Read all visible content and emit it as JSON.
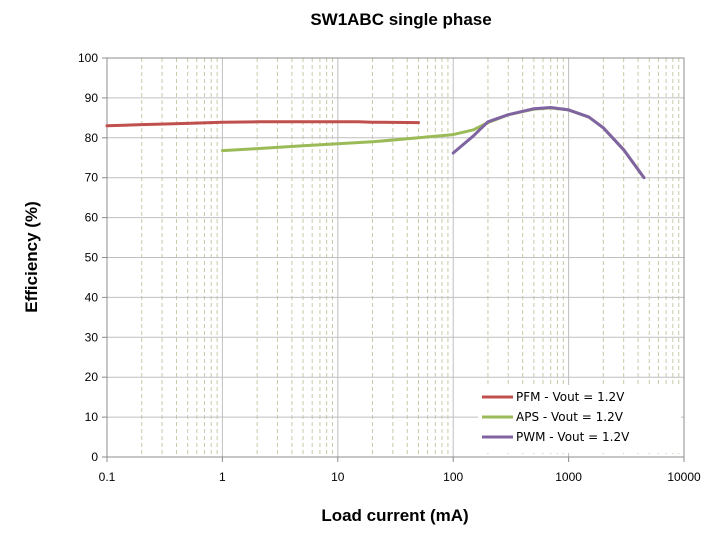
{
  "chart_data": {
    "type": "line",
    "title": "SW1ABC single phase",
    "xlabel": "Load current (mA)",
    "ylabel": "Efficiency (%)",
    "xscale": "log",
    "xlim": [
      0.1,
      10000
    ],
    "ylim": [
      0,
      100
    ],
    "x_ticks": [
      "0.1",
      "1",
      "10",
      "100",
      "1000",
      "10000"
    ],
    "y_ticks": [
      "0",
      "10",
      "20",
      "30",
      "40",
      "50",
      "60",
      "70",
      "80",
      "90",
      "100"
    ],
    "grid": "on",
    "legend_position": "bottom-right",
    "colors": {
      "plot_border": "#8c8c8c",
      "grid_minor": "#c9c9a6",
      "grid_major": "#bfbfbf"
    },
    "series": [
      {
        "name": "PFM - Vout = 1.2V",
        "color": "#c0504d",
        "x": [
          0.1,
          0.2,
          0.5,
          1,
          2,
          5,
          10,
          15,
          20,
          50
        ],
        "y": [
          83.0,
          83.3,
          83.6,
          83.9,
          84.0,
          84.0,
          84.0,
          84.0,
          83.9,
          83.8
        ]
      },
      {
        "name": "APS - Vout = 1.2V",
        "color": "#9bbb59",
        "x": [
          1,
          2,
          5,
          10,
          20,
          50,
          100,
          150,
          200,
          300,
          500,
          700,
          1000,
          1500,
          2000,
          3000,
          4500
        ],
        "y": [
          76.8,
          77.3,
          78.0,
          78.5,
          79.0,
          80.0,
          80.8,
          82.0,
          83.8,
          85.8,
          87.2,
          87.5,
          87.0,
          85.2,
          82.5,
          77.0,
          70.0
        ]
      },
      {
        "name": "PWM - Vout = 1.2V",
        "color": "#8064a2",
        "x": [
          100,
          150,
          200,
          300,
          500,
          700,
          1000,
          1500,
          2000,
          3000,
          4500
        ],
        "y": [
          76.2,
          80.5,
          84.0,
          85.8,
          87.3,
          87.6,
          87.0,
          85.2,
          82.5,
          77.0,
          70.0
        ]
      }
    ]
  }
}
